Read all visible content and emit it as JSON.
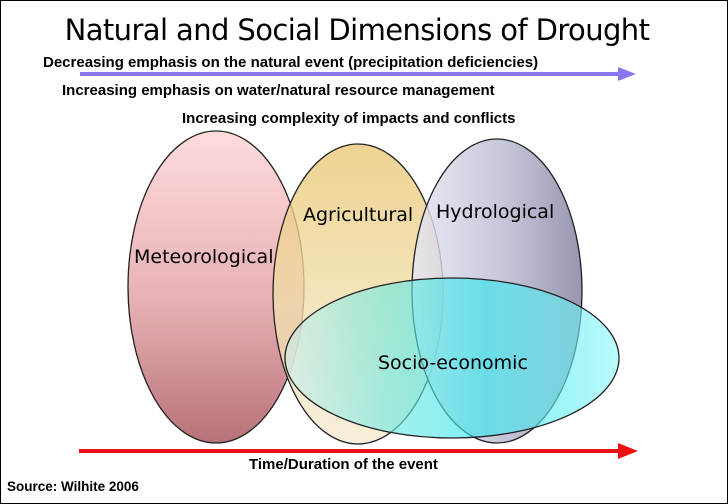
{
  "title": "Natural and Social Dimensions of Drought",
  "emphasis_lines": [
    "Decreasing emphasis on the natural event (precipitation deficiencies)",
    "Increasing emphasis on water/natural resource management",
    "Increasing complexity of impacts and conflicts"
  ],
  "drought_types": {
    "meteorological": "Meteorological",
    "agricultural": "Agricultural",
    "hydrological": "Hydrological",
    "socio_economic": "Socio-economic"
  },
  "time_axis_label": "Time/Duration of the event",
  "source": "Source: Wilhite 2006",
  "colors": {
    "top_arrow": "#8877ee",
    "bottom_arrow": "#ee1111",
    "meteorological": "#c07a80",
    "agricultural": "#d6b860",
    "hydrological": "#8c8cb0",
    "socio_economic": "#40e0e6"
  }
}
